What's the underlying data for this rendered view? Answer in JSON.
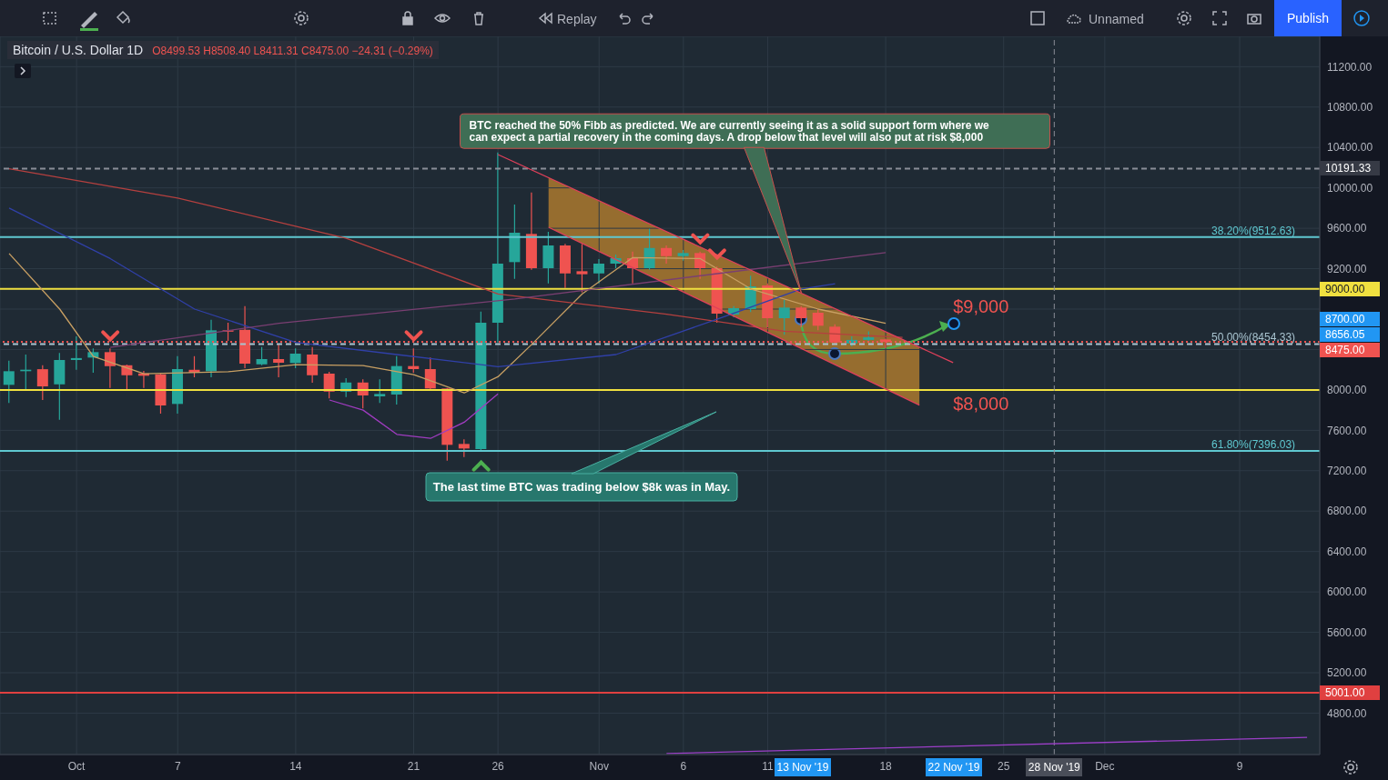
{
  "chart_data": {
    "type": "candlestick",
    "title": "Bitcoin / U.S. Dollar  1D",
    "subtitle": "O8499.53 H8508.40 L8411.31 C8475.00 −24.31 (−0.29%)",
    "x": [
      "2019-09-27",
      "2019-09-28",
      "2019-09-29",
      "2019-09-30",
      "2019-10-01",
      "2019-10-02",
      "2019-10-03",
      "2019-10-04",
      "2019-10-05",
      "2019-10-06",
      "2019-10-07",
      "2019-10-08",
      "2019-10-09",
      "2019-10-10",
      "2019-10-11",
      "2019-10-12",
      "2019-10-13",
      "2019-10-14",
      "2019-10-15",
      "2019-10-16",
      "2019-10-17",
      "2019-10-18",
      "2019-10-19",
      "2019-10-20",
      "2019-10-21",
      "2019-10-22",
      "2019-10-23",
      "2019-10-24",
      "2019-10-25",
      "2019-10-26",
      "2019-10-27",
      "2019-10-28",
      "2019-10-29",
      "2019-10-30",
      "2019-10-31",
      "2019-11-01",
      "2019-11-02",
      "2019-11-03",
      "2019-11-04",
      "2019-11-05",
      "2019-11-06",
      "2019-11-07",
      "2019-11-08",
      "2019-11-09",
      "2019-11-10",
      "2019-11-11",
      "2019-11-12",
      "2019-11-13",
      "2019-11-14",
      "2019-11-15",
      "2019-11-16",
      "2019-11-17",
      "2019-11-18"
    ],
    "ohlc": [
      [
        8050,
        8289,
        7870,
        8185
      ],
      [
        8185,
        8350,
        8005,
        8200
      ],
      [
        8205,
        8244,
        7900,
        8035
      ],
      [
        8055,
        8365,
        7704,
        8296
      ],
      [
        8296,
        8530,
        8199,
        8315
      ],
      [
        8320,
        8410,
        8170,
        8374
      ],
      [
        8374,
        8410,
        8019,
        8235
      ],
      [
        8244,
        8250,
        7990,
        8145
      ],
      [
        8163,
        8188,
        8019,
        8140
      ],
      [
        8154,
        8160,
        7765,
        7846
      ],
      [
        7861,
        8334,
        7765,
        8206
      ],
      [
        8199,
        8334,
        8125,
        8170
      ],
      [
        8185,
        8694,
        8125,
        8590
      ],
      [
        8590,
        8665,
        8485,
        8580
      ],
      [
        8595,
        8830,
        8215,
        8260
      ],
      [
        8253,
        8425,
        8244,
        8305
      ],
      [
        8305,
        8455,
        8125,
        8269
      ],
      [
        8266,
        8410,
        8215,
        8359
      ],
      [
        8350,
        8425,
        8070,
        8145
      ],
      [
        8161,
        8179,
        7915,
        7983
      ],
      [
        7983,
        8116,
        7930,
        8073
      ],
      [
        8073,
        8104,
        7816,
        7945
      ],
      [
        7936,
        8104,
        7870,
        7960
      ],
      [
        7954,
        8334,
        7855,
        8236
      ],
      [
        8236,
        8410,
        8170,
        8206
      ],
      [
        8206,
        8320,
        7990,
        8014
      ],
      [
        8014,
        8020,
        7299,
        7456
      ],
      [
        7465,
        7510,
        7335,
        7420
      ],
      [
        7414,
        8776,
        7390,
        8665
      ],
      [
        8665,
        10350,
        8470,
        9250
      ],
      [
        9265,
        9835,
        9100,
        9556
      ],
      [
        9544,
        9954,
        9190,
        9205
      ],
      [
        9205,
        9565,
        9054,
        9430
      ],
      [
        9430,
        9445,
        9010,
        9153
      ],
      [
        9175,
        9445,
        8965,
        9145
      ],
      [
        9153,
        9295,
        9054,
        9250
      ],
      [
        9250,
        9340,
        9205,
        9304
      ],
      [
        9304,
        9370,
        9054,
        9205
      ],
      [
        9205,
        9595,
        9190,
        9405
      ],
      [
        9405,
        9430,
        9250,
        9324
      ],
      [
        9324,
        9385,
        9280,
        9355
      ],
      [
        9355,
        9370,
        9100,
        9205
      ],
      [
        9205,
        9220,
        8665,
        8755
      ],
      [
        8746,
        8830,
        8720,
        8809
      ],
      [
        8800,
        9130,
        8770,
        9025
      ],
      [
        9034,
        9055,
        8620,
        8710
      ],
      [
        8710,
        8890,
        8545,
        8815
      ],
      [
        8815,
        8830,
        8620,
        8710
      ],
      [
        8764,
        8800,
        8590,
        8635
      ],
      [
        8626,
        8650,
        8450,
        8470
      ],
      [
        8460,
        8530,
        8430,
        8495
      ],
      [
        8495,
        8580,
        8470,
        8520
      ],
      [
        8499.53,
        8508.4,
        8411.31,
        8475
      ]
    ],
    "series": [
      {
        "type": "line",
        "color": "#c9a063",
        "x": [
          "2019-09-27",
          "2019-09-30",
          "2019-10-02",
          "2019-10-05",
          "2019-10-10",
          "2019-10-14",
          "2019-10-18",
          "2019-10-21",
          "2019-10-24",
          "2019-10-26",
          "2019-10-28",
          "2019-10-31",
          "2019-11-03",
          "2019-11-07",
          "2019-11-10",
          "2019-11-14",
          "2019-11-18"
        ],
        "values": [
          9350,
          8800,
          8330,
          8160,
          8180,
          8250,
          8240,
          8150,
          7970,
          8130,
          8450,
          8950,
          9310,
          9300,
          9000,
          8800,
          8660
        ]
      },
      {
        "type": "line",
        "color": "#b5403f",
        "x": [
          "2019-09-27",
          "2019-10-07",
          "2019-10-17",
          "2019-10-26",
          "2019-11-05",
          "2019-11-12",
          "2019-11-19"
        ],
        "values": [
          10190,
          9900,
          9500,
          8950,
          8750,
          8580,
          8520
        ]
      },
      {
        "type": "line",
        "color": "#3040a8",
        "x": [
          "2019-09-27",
          "2019-10-03",
          "2019-10-08",
          "2019-10-14",
          "2019-10-20",
          "2019-10-26",
          "2019-11-02",
          "2019-11-08",
          "2019-11-13",
          "2019-11-15"
        ],
        "values": [
          9800,
          9300,
          8800,
          8470,
          8350,
          8230,
          8350,
          8700,
          9000,
          9050
        ]
      },
      {
        "type": "line",
        "color": "#a03cc0",
        "x": [
          "2019-10-16",
          "2019-10-18",
          "2019-10-20",
          "2019-10-22",
          "2019-10-24",
          "2019-10-26"
        ],
        "values": [
          7900,
          7800,
          7560,
          7520,
          7680,
          7960
        ]
      },
      {
        "type": "line",
        "color": "#7a3f72",
        "x": [
          "2019-10-03",
          "2019-10-13",
          "2019-10-27",
          "2019-11-18"
        ],
        "values": [
          8420,
          8660,
          8900,
          9360
        ]
      },
      {
        "type": "line",
        "color": "#e0405a",
        "x": [
          "2019-10-26",
          "2019-11-22"
        ],
        "values": [
          10330,
          8270
        ]
      },
      {
        "type": "line",
        "color": "#e0405a",
        "x": [
          "2019-10-29",
          "2019-11-20"
        ],
        "values": [
          9610,
          7850
        ]
      },
      {
        "type": "line",
        "color": "#9c3fc8",
        "x": [
          "2019-11-05",
          "2019-12-13"
        ],
        "values": [
          4400,
          4560
        ]
      }
    ],
    "xlim": [
      "2019-09-26T11:00",
      "2019-12-13T18:00"
    ],
    "xticks": [
      {
        "value": "2019-10-01",
        "label": "Oct"
      },
      {
        "value": "2019-10-07",
        "label": "7"
      },
      {
        "value": "2019-10-14",
        "label": "14"
      },
      {
        "value": "2019-10-21",
        "label": "21"
      },
      {
        "value": "2019-10-26",
        "label": "26"
      },
      {
        "value": "2019-11-01",
        "label": "Nov"
      },
      {
        "value": "2019-11-06",
        "label": "6"
      },
      {
        "value": "2019-11-11",
        "label": "11"
      },
      {
        "value": "2019-11-18",
        "label": "18"
      },
      {
        "value": "2019-11-25",
        "label": "25"
      },
      {
        "value": "2019-12-01",
        "label": "Dec"
      },
      {
        "value": "2019-12-09",
        "label": "9"
      }
    ],
    "ylim": [
      4390,
      11500
    ],
    "yticks": [
      {
        "value": 4800,
        "label": "4800.00"
      },
      {
        "value": 5200,
        "label": "5200.00"
      },
      {
        "value": 5600,
        "label": "5600.00"
      },
      {
        "value": 6000,
        "label": "6000.00"
      },
      {
        "value": 6400,
        "label": "6400.00"
      },
      {
        "value": 6800,
        "label": "6800.00"
      },
      {
        "value": 7200,
        "label": "7200.00"
      },
      {
        "value": 7600,
        "label": "7600.00"
      },
      {
        "value": 8000,
        "label": "8000.00"
      },
      {
        "value": 8400,
        "label": null
      },
      {
        "value": 8800,
        "label": null
      },
      {
        "value": 9200,
        "label": "9200.00"
      },
      {
        "value": 9600,
        "label": "9600.00"
      },
      {
        "value": 10000,
        "label": "10000.00"
      },
      {
        "value": 10400,
        "label": "10400.00"
      },
      {
        "value": 10800,
        "label": "10800.00"
      },
      {
        "value": 11200,
        "label": "11200.00"
      }
    ],
    "grid": true,
    "ref_lines": [
      {
        "axis": "y",
        "value": 9512.63,
        "label": "38.20%(9512.63)",
        "color": "#5fc8d0",
        "line_style": "solid"
      },
      {
        "axis": "y",
        "value": 8454.33,
        "label": "50.00%(8454.33)",
        "color": "#a9c4d0",
        "line_style": "dashed"
      },
      {
        "axis": "y",
        "value": 7396.03,
        "label": "61.80%(7396.03)",
        "color": "#5fc8d0",
        "line_style": "solid"
      },
      {
        "axis": "y",
        "value": 9000,
        "label": "9000.00",
        "color": "#f0e040",
        "line_style": "solid"
      },
      {
        "axis": "y",
        "value": 8000,
        "color": "#f0e040",
        "line_style": "solid"
      },
      {
        "axis": "y",
        "value": 5001,
        "label": "5001.00",
        "color": "#e04040",
        "line_style": "solid"
      },
      {
        "axis": "y",
        "value": 10191.33,
        "label": "10191.33",
        "color": "#8a8e98",
        "line_style": "dashed"
      },
      {
        "axis": "y",
        "value": 8475,
        "label": "8475.00",
        "color": "#ef5350",
        "line_style": "dotted"
      },
      {
        "axis": "x",
        "value": "2019-11-28",
        "label": "28 Nov '19",
        "color": "#8a8e98",
        "line_style": "dashed"
      }
    ],
    "annotations": [
      {
        "text": "BTC reached the 50% Fibb as predicted. We are currently seeing it as a solid support form where we can expect a partial recovery in the coming days. A drop below that level will also put at risk $8,000",
        "x": "2019-11-13",
        "y": 8960
      },
      "The last time BTC was trading below $8k was in May.",
      {
        "text": "$9,000",
        "x": "2019-11-22",
        "y": 9000
      },
      {
        "text": "$8,000",
        "x": "2019-11-22",
        "y": 8000
      },
      "8700.00",
      "8656.05",
      "13 Nov '19",
      "22 Nov '19",
      "Replay",
      "Unnamed",
      "Publish"
    ]
  }
}
